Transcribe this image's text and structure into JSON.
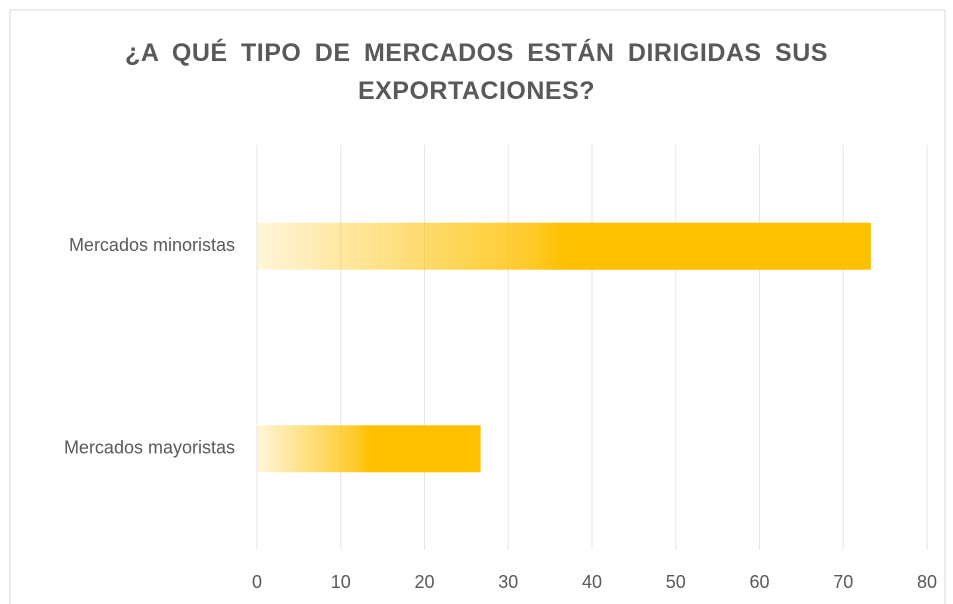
{
  "chart_data": {
    "type": "barh",
    "title": "¿A QUÉ TIPO DE MERCADOS ESTÁN DIRIGIDAS SUS EXPORTACIONES?",
    "categories": [
      "Mercados minoristas",
      "Mercados mayoristas"
    ],
    "values": [
      73.3,
      26.7
    ],
    "color": "#ffc000",
    "xlim": [
      0,
      80
    ],
    "xticks": [
      0,
      10,
      20,
      30,
      40,
      50,
      60,
      70,
      80
    ],
    "grid": true
  }
}
